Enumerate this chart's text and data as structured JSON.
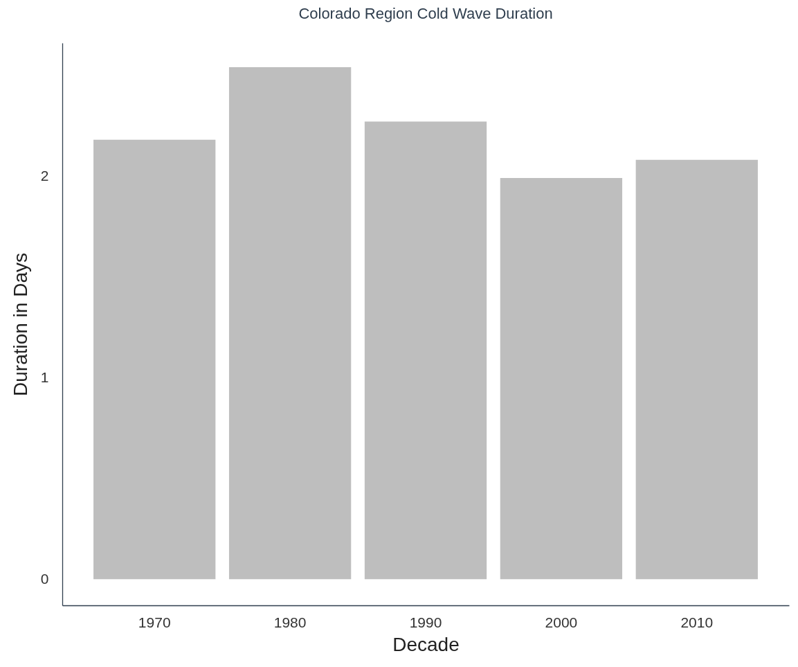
{
  "chart_data": {
    "type": "bar",
    "title": "Colorado Region Cold Wave Duration",
    "xlabel": "Decade",
    "ylabel": "Duration in Days",
    "categories": [
      "1970",
      "1980",
      "1990",
      "2000",
      "2010"
    ],
    "values": [
      2.18,
      2.54,
      2.27,
      1.99,
      2.08
    ],
    "color": "#bebebe",
    "ylim": [
      -0.13,
      2.66
    ],
    "yticks": [
      0,
      1,
      2
    ]
  }
}
